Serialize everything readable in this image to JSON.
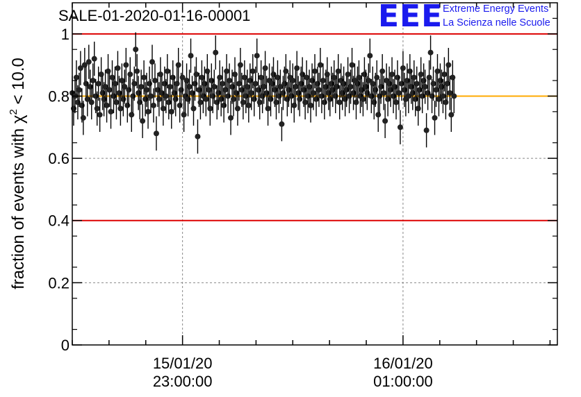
{
  "header": {
    "title": "SALE-01-2020-01-16-00001",
    "logo_text": "EEE",
    "tagline_1": "Extreme Energy Events",
    "tagline_2": "La Scienza nelle Scuole"
  },
  "colors": {
    "logo": "#1a1aee",
    "limit_line": "#dd0000",
    "mean_line": "#ffaa00",
    "points": "#000000",
    "grid": "#888888"
  },
  "chart_data": {
    "type": "scatter",
    "title": "SALE-01-2020-01-16-00001",
    "ylabel_prefix": "fraction of events with ",
    "ylabel_symbol": "χ",
    "ylabel_sup": "2",
    "ylabel_suffix": " < 10.0",
    "ylim": [
      0,
      1.1
    ],
    "xlim": [
      "2020-01-15 22:00:00",
      "2020-01-16 02:24:00"
    ],
    "x_ticks": [
      {
        "x": "2020-01-15 23:00:00",
        "label_date": "15/01/20",
        "label_time": "23:00:00"
      },
      {
        "x": "2020-01-16 01:00:00",
        "label_date": "16/01/20",
        "label_time": "01:00:00"
      }
    ],
    "y_ticks": [
      0,
      0.2,
      0.4,
      0.6,
      0.8,
      1
    ],
    "y_tick_labels": [
      "0",
      "0.2",
      "0.4",
      "0.6",
      "0.8",
      "1"
    ],
    "grid": true,
    "reference_lines": [
      {
        "y": 1.0,
        "color": "#dd0000"
      },
      {
        "y": 0.4,
        "color": "#dd0000"
      },
      {
        "y": 0.8,
        "color": "#ffaa00"
      }
    ],
    "series": [
      {
        "start": "2020-01-15 22:00:00",
        "interval_s": 45,
        "error": 0.055,
        "y": [
          0.81,
          0.76,
          0.8,
          0.86,
          0.78,
          0.82,
          0.89,
          0.77,
          0.73,
          0.9,
          0.84,
          0.79,
          0.91,
          0.83,
          0.78,
          0.85,
          0.92,
          0.8,
          0.76,
          0.84,
          0.74,
          0.87,
          0.81,
          0.79,
          0.83,
          0.77,
          0.88,
          0.82,
          0.75,
          0.86,
          0.8,
          0.84,
          0.78,
          0.89,
          0.81,
          0.76,
          0.85,
          0.79,
          0.83,
          0.9,
          0.77,
          0.82,
          0.87,
          0.74,
          0.8,
          0.84,
          0.95,
          0.88,
          0.81,
          0.78,
          0.83,
          0.72,
          0.86,
          0.79,
          0.82,
          0.75,
          0.84,
          0.8,
          0.91,
          0.77,
          0.85,
          0.68,
          0.82,
          0.79,
          0.87,
          0.81,
          0.76,
          0.84,
          0.8,
          0.88,
          0.78,
          0.83,
          0.75,
          0.86,
          0.81,
          0.79,
          0.84,
          0.9,
          0.77,
          0.82,
          0.86,
          0.74,
          0.8,
          0.85,
          0.79,
          0.83,
          0.93,
          0.81,
          0.76,
          0.84,
          0.87,
          0.67,
          0.82,
          0.78,
          0.86,
          0.8,
          0.84,
          0.79,
          0.88,
          0.82,
          0.76,
          0.85,
          0.8,
          0.83,
          0.94,
          0.78,
          0.81,
          0.86,
          0.79,
          0.84,
          0.77,
          0.82,
          0.88,
          0.8,
          0.85,
          0.73,
          0.83,
          0.79,
          0.87,
          0.81,
          0.76,
          0.84,
          0.9,
          0.82,
          0.78,
          0.86,
          0.8,
          0.83,
          0.77,
          0.85,
          0.81,
          0.88,
          0.79,
          0.84,
          0.93,
          0.82,
          0.78,
          0.86,
          0.8,
          0.83,
          0.89,
          0.81,
          0.76,
          0.85,
          0.79,
          0.84,
          0.87,
          0.82,
          0.78,
          0.86,
          0.8,
          0.83,
          0.71,
          0.81,
          0.84,
          0.88,
          0.79,
          0.82,
          0.86,
          0.8,
          0.85,
          0.77,
          0.83,
          0.89,
          0.81,
          0.79,
          0.84,
          0.87,
          0.82,
          0.78,
          0.86,
          0.8,
          0.83,
          0.77,
          0.85,
          0.81,
          0.88,
          0.79,
          0.84,
          0.82,
          0.9,
          0.8,
          0.85,
          0.78,
          0.83,
          0.87,
          0.81,
          0.79,
          0.84,
          0.82,
          0.86,
          0.8,
          0.83,
          0.88,
          0.78,
          0.85,
          0.81,
          0.84,
          0.79,
          0.82,
          0.87,
          0.8,
          0.83,
          0.9,
          0.81,
          0.85,
          0.78,
          0.84,
          0.86,
          0.8,
          0.82,
          0.79,
          0.87,
          0.83,
          0.81,
          0.85,
          0.93,
          0.8,
          0.84,
          0.78,
          0.82,
          0.86,
          0.74,
          0.8,
          0.83,
          0.88,
          0.81,
          0.72,
          0.85,
          0.79,
          0.84,
          0.82,
          0.87,
          0.8,
          0.83,
          0.78,
          0.86,
          0.81,
          0.7,
          0.84,
          0.89,
          0.82,
          0.79,
          0.85,
          0.8,
          0.88,
          0.83,
          0.81,
          0.86,
          0.79,
          0.84,
          0.76,
          0.82,
          0.87,
          0.8,
          0.85,
          0.83,
          0.69,
          0.81,
          0.86,
          0.94,
          0.8,
          0.84,
          0.73,
          0.82,
          0.88,
          0.79,
          0.85,
          0.83,
          0.8,
          0.87,
          0.78,
          0.84,
          0.9,
          0.81,
          0.74,
          0.86,
          0.8
        ]
      }
    ]
  }
}
